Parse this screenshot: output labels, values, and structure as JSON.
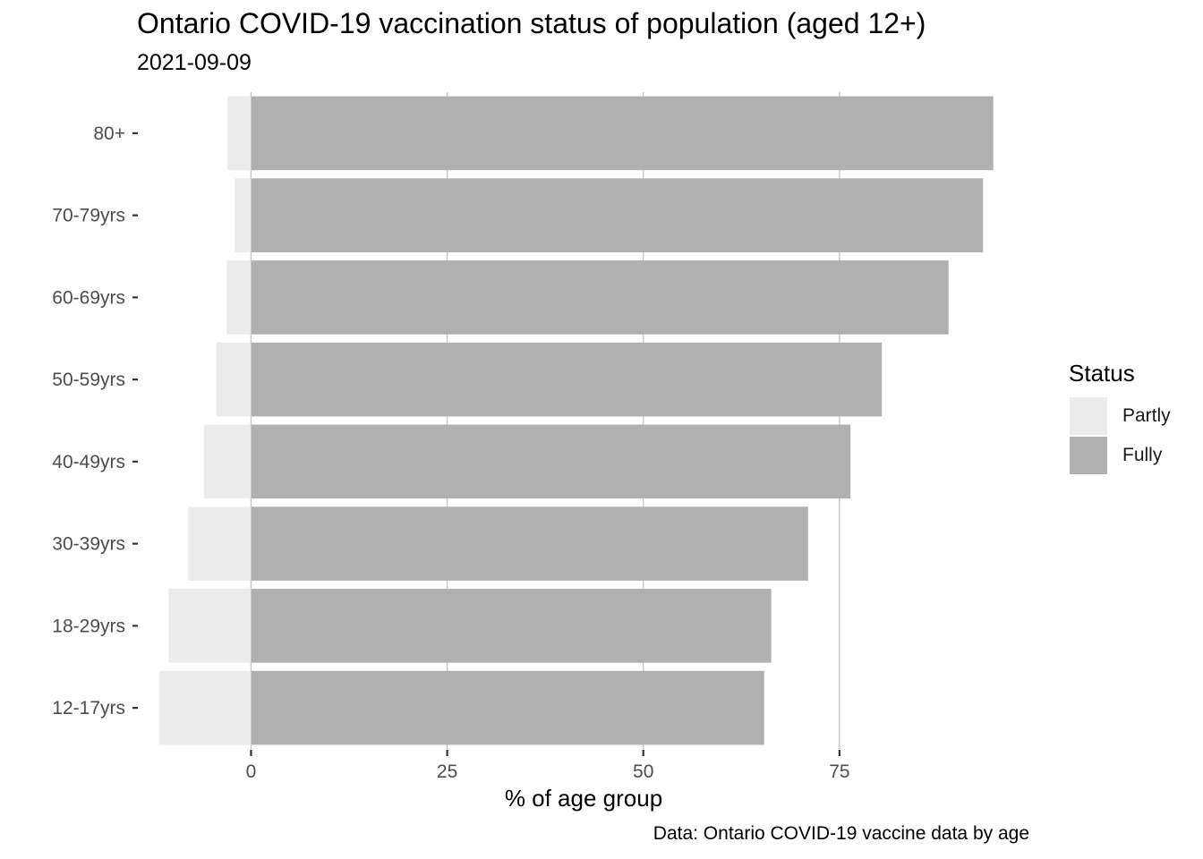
{
  "chart_data": {
    "type": "bar",
    "orientation": "horizontal",
    "stacked": true,
    "title": "Ontario COVID-19 vaccination status of population (aged 12+)",
    "subtitle": "2021-09-09",
    "caption": "Data: Ontario COVID-19 vaccine data by age",
    "xlabel": "% of age group",
    "ylabel": "",
    "categories": [
      "12-17yrs",
      "18-29yrs",
      "30-39yrs",
      "40-49yrs",
      "50-59yrs",
      "60-69yrs",
      "70-79yrs",
      "80+"
    ],
    "series": [
      {
        "name": "Partly",
        "color": "#ebebeb",
        "values": [
          -11.7,
          -10.5,
          -8.0,
          -6.0,
          -4.4,
          -3.1,
          -2.1,
          -3.0
        ]
      },
      {
        "name": "Fully",
        "color": "#b0b0b0",
        "values": [
          65.4,
          66.3,
          71.0,
          76.4,
          80.4,
          88.9,
          93.3,
          94.6
        ]
      }
    ],
    "xticks": [
      0,
      25,
      50,
      75
    ],
    "xlim": [
      -14.2,
      99.2
    ],
    "grid": "vertical",
    "legend": {
      "title": "Status",
      "position": "right"
    }
  }
}
